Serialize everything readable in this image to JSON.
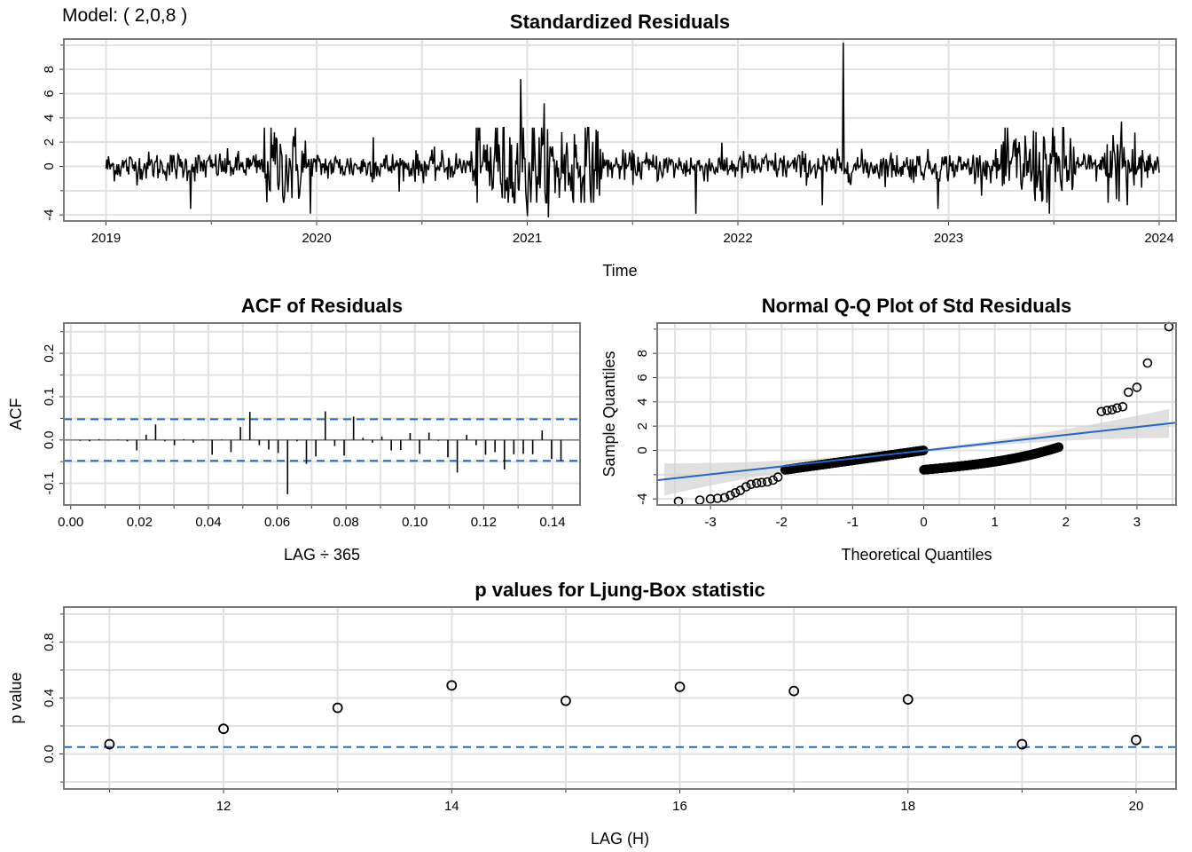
{
  "model_label": "Model: ( 2,0,8 )",
  "chart_data": [
    {
      "type": "line",
      "title": "Standardized Residuals",
      "xlabel": "Time",
      "ylabel": "",
      "xlim": [
        2018.8,
        2024.08
      ],
      "ylim": [
        -4.5,
        10.5
      ],
      "x_ticks": [
        2019,
        2020,
        2021,
        2022,
        2023,
        2024
      ],
      "x_tick_labels": [
        "2019",
        "2020",
        "2021",
        "2022",
        "2023",
        "2024"
      ],
      "y_ticks": [
        -4,
        0,
        2,
        4,
        6,
        8
      ],
      "y_tick_labels": [
        "-4",
        "0",
        "2",
        "4",
        "6",
        "8"
      ],
      "grid": true,
      "series": [
        {
          "x_start": 2019.0,
          "x_end": 2024.0,
          "n_points": 1258,
          "base_amplitude": 0.6,
          "high_volatility_periods": [
            [
              2019.75,
              2019.95,
              1.7
            ],
            [
              2020.75,
              2021.35,
              2.1
            ],
            [
              2023.25,
              2023.6,
              1.7
            ],
            [
              2023.75,
              2023.95,
              1.6
            ]
          ],
          "notable_values": [
            {
              "x": 2019.4,
              "y": -3.5
            },
            {
              "x": 2019.8,
              "y": 2.8
            },
            {
              "x": 2019.97,
              "y": -3.9
            },
            {
              "x": 2020.27,
              "y": 2.4
            },
            {
              "x": 2020.85,
              "y": 3.2
            },
            {
              "x": 2020.97,
              "y": 7.2
            },
            {
              "x": 2021.0,
              "y": -4.1
            },
            {
              "x": 2021.08,
              "y": 5.2
            },
            {
              "x": 2021.1,
              "y": -4.2
            },
            {
              "x": 2021.8,
              "y": -3.9
            },
            {
              "x": 2022.5,
              "y": 10.2
            },
            {
              "x": 2022.4,
              "y": -3.2
            },
            {
              "x": 2022.95,
              "y": -3.5
            },
            {
              "x": 2023.48,
              "y": -3.9
            },
            {
              "x": 2023.85,
              "y": -3.2
            },
            {
              "x": 2023.82,
              "y": 3.7
            }
          ]
        }
      ]
    },
    {
      "type": "bar",
      "title": "ACF of Residuals",
      "xlabel": "LAG ÷ 365",
      "ylabel": "ACF",
      "xlim": [
        -0.002,
        0.148
      ],
      "ylim": [
        -0.15,
        0.27
      ],
      "x_ticks": [
        0.0,
        0.02,
        0.04,
        0.06,
        0.08,
        0.1,
        0.12,
        0.14
      ],
      "x_tick_labels": [
        "0.00",
        "0.02",
        "0.04",
        "0.06",
        "0.08",
        "0.10",
        "0.12",
        "0.14"
      ],
      "y_ticks": [
        -0.1,
        0.0,
        0.1,
        0.2
      ],
      "y_tick_labels": [
        "-0.1",
        "0.0",
        "0.1",
        "0.2"
      ],
      "grid": true,
      "confidence_band": 0.048,
      "lags": [
        1,
        2,
        3,
        4,
        5,
        6,
        7,
        8,
        9,
        10,
        11,
        12,
        13,
        14,
        15,
        16,
        17,
        18,
        19,
        20,
        21,
        22,
        23,
        24,
        25,
        26,
        27,
        28,
        29,
        30,
        31,
        32,
        33,
        34,
        35,
        36,
        37,
        38,
        39,
        40,
        41,
        42,
        43,
        44,
        45,
        46,
        47,
        48,
        49,
        50,
        51,
        52
      ],
      "values": [
        -0.002,
        -0.003,
        0.002,
        -0.001,
        0.001,
        -0.003,
        -0.024,
        0.012,
        0.036,
        -0.003,
        -0.012,
        0.002,
        -0.006,
        0.001,
        -0.034,
        0.001,
        -0.028,
        0.03,
        0.065,
        -0.012,
        -0.022,
        -0.03,
        -0.125,
        -0.003,
        -0.055,
        -0.038,
        0.066,
        -0.014,
        -0.036,
        0.054,
        0.005,
        -0.006,
        0.008,
        -0.024,
        -0.023,
        0.016,
        -0.032,
        0.017,
        -0.002,
        -0.04,
        -0.075,
        0.012,
        -0.012,
        -0.034,
        -0.028,
        -0.068,
        -0.033,
        -0.032,
        -0.033,
        0.022,
        -0.044,
        -0.048
      ]
    },
    {
      "type": "scatter",
      "title": "Normal Q-Q Plot of Std Residuals",
      "xlabel": "Theoretical Quantiles",
      "ylabel": "Sample Quantiles",
      "xlim": [
        -3.75,
        3.55
      ],
      "ylim": [
        -4.5,
        10.5
      ],
      "x_ticks": [
        -3,
        -2,
        -1,
        0,
        1,
        2,
        3
      ],
      "x_tick_labels": [
        "-3",
        "-2",
        "-1",
        "0",
        "1",
        "2",
        "3"
      ],
      "y_ticks": [
        -4,
        0,
        2,
        4,
        6,
        8
      ],
      "y_tick_labels": [
        "-4",
        "0",
        "2",
        "4",
        "6",
        "8"
      ],
      "grid": true,
      "reference_line": {
        "intercept": -0.02,
        "slope": 0.65
      },
      "n_points": 1258,
      "tail_points": [
        {
          "x": -3.45,
          "y": -4.2
        },
        {
          "x": -3.15,
          "y": -4.1
        },
        {
          "x": -3.0,
          "y": -4.0
        },
        {
          "x": -2.9,
          "y": -3.95
        },
        {
          "x": -2.8,
          "y": -3.9
        },
        {
          "x": -2.72,
          "y": -3.7
        },
        {
          "x": -2.65,
          "y": -3.5
        },
        {
          "x": -2.58,
          "y": -3.3
        },
        {
          "x": -2.5,
          "y": -3.0
        },
        {
          "x": -2.43,
          "y": -2.8
        },
        {
          "x": -2.35,
          "y": -2.7
        },
        {
          "x": -2.28,
          "y": -2.65
        },
        {
          "x": -2.2,
          "y": -2.6
        },
        {
          "x": -2.12,
          "y": -2.45
        },
        {
          "x": -2.05,
          "y": -2.2
        },
        {
          "x": 2.5,
          "y": 3.2
        },
        {
          "x": 2.58,
          "y": 3.3
        },
        {
          "x": 2.65,
          "y": 3.35
        },
        {
          "x": 2.72,
          "y": 3.5
        },
        {
          "x": 2.8,
          "y": 3.6
        },
        {
          "x": 2.88,
          "y": 4.8
        },
        {
          "x": 3.0,
          "y": 5.2
        },
        {
          "x": 3.15,
          "y": 7.2
        },
        {
          "x": 3.45,
          "y": 10.2
        }
      ]
    },
    {
      "type": "scatter",
      "title": "p values for Ljung-Box statistic",
      "xlabel": "LAG (H)",
      "ylabel": "p value",
      "xlim": [
        10.6,
        20.35
      ],
      "ylim": [
        -0.25,
        1.05
      ],
      "x_ticks": [
        12,
        14,
        16,
        18,
        20
      ],
      "x_tick_labels": [
        "12",
        "14",
        "16",
        "18",
        "20"
      ],
      "y_ticks": [
        0.0,
        0.4,
        0.8
      ],
      "y_tick_labels": [
        "0.0",
        "0.4",
        "0.8"
      ],
      "grid": true,
      "significance_line": 0.05,
      "x": [
        11,
        12,
        13,
        14,
        15,
        16,
        17,
        18,
        19,
        20
      ],
      "y": [
        0.07,
        0.18,
        0.33,
        0.49,
        0.38,
        0.48,
        0.45,
        0.39,
        0.07,
        0.1
      ]
    }
  ]
}
